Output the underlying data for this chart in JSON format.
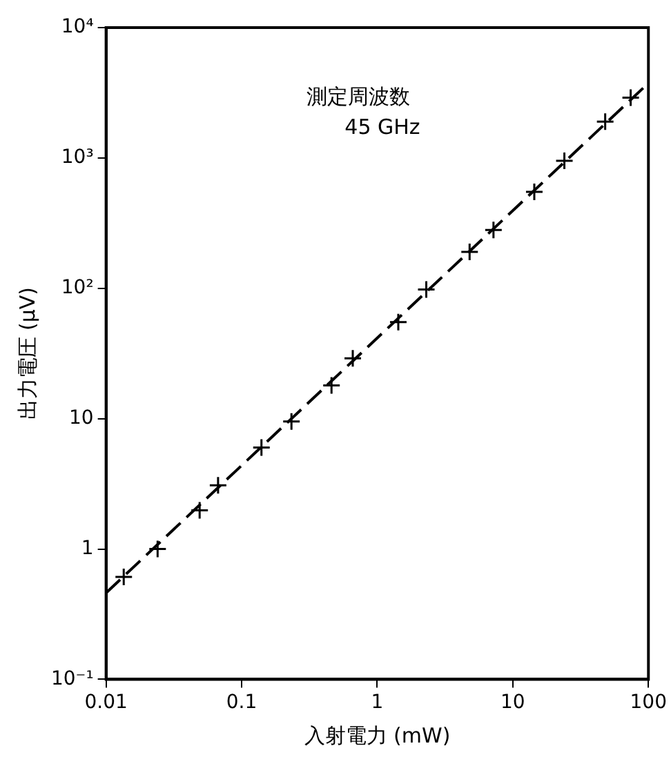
{
  "chart_data": {
    "type": "scatter",
    "xlabel": "入射電力 (mW)",
    "ylabel": "出力電圧 (μV)",
    "annotations": [
      "測定周波数",
      "45 GHz"
    ],
    "log": "xy",
    "grid": false,
    "marker": "cross",
    "xlim": [
      0.01,
      100
    ],
    "xticks": [
      {
        "value": 0.01,
        "label": "0.01"
      },
      {
        "value": 0.1,
        "label": "0.1"
      },
      1,
      10,
      100
    ],
    "ylim": [
      0.1,
      10000
    ],
    "yticks": [
      {
        "value": 0.1,
        "label": "10⁻¹"
      },
      1,
      10,
      {
        "value": 100,
        "label": "10²"
      },
      {
        "value": 1000,
        "label": "10³"
      },
      {
        "value": 10000,
        "label": "10⁴"
      }
    ],
    "series": [
      {
        "type": "scatter",
        "color": "#000000",
        "x": [
          0.0135,
          0.024,
          0.049,
          0.067,
          0.14,
          0.233,
          0.46,
          0.66,
          1.43,
          2.3,
          4.8,
          7.2,
          14.4,
          24,
          48,
          74
        ],
        "values": [
          0.61,
          1.0,
          1.98,
          3.08,
          6.0,
          9.5,
          18,
          29,
          55,
          98,
          190,
          280,
          550,
          950,
          1900,
          2900
        ]
      },
      {
        "type": "line",
        "color": "#000000",
        "line_style": "dashed",
        "marker": "none",
        "x": [
          0.01,
          100
        ],
        "values": [
          0.46,
          3750
        ]
      }
    ]
  }
}
